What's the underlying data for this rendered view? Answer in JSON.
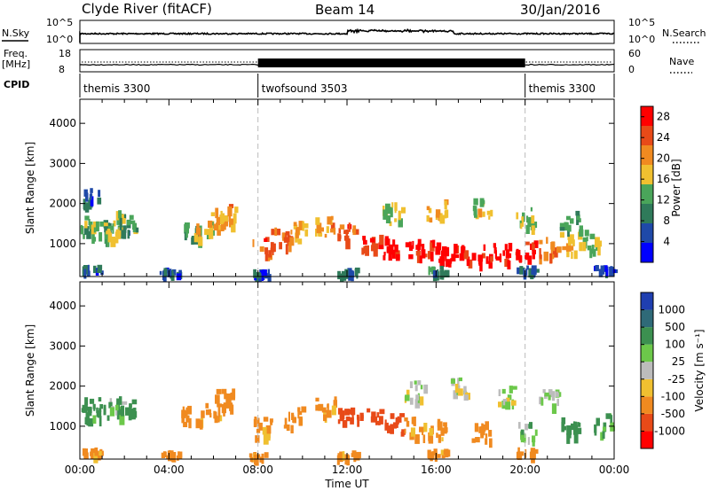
{
  "header": {
    "station": "Clyde River (fitACF)",
    "beam": "Beam 14",
    "date": "30/Jan/2016"
  },
  "strips": {
    "nsky_label": "N.Sky",
    "nsky_ticks": [
      "10^5",
      "10^0"
    ],
    "nsearch_label": "N.Search",
    "nsearch_ticks": [
      "10^5",
      "10^0"
    ],
    "freq_label_line1": "Freq.",
    "freq_label_line2": "[MHz]",
    "freq_ticks": [
      "18",
      "8"
    ],
    "nave_label": "Nave",
    "nave_ticks": [
      "60",
      "0"
    ],
    "cpid_label": "CPID"
  },
  "cpid_segments": [
    {
      "name": "themis 3300",
      "start": 0,
      "end": 8
    },
    {
      "name": "twofsound 3503",
      "start": 8,
      "end": 20
    },
    {
      "name": "themis 3300",
      "start": 20,
      "end": 24
    }
  ],
  "chart_data": [
    {
      "type": "heatmap",
      "panel": "power",
      "xlabel": "Time UT",
      "ylabel": "Slant Range [km]",
      "x_ticks": [
        "00:00",
        "04:00",
        "08:00",
        "12:00",
        "16:00",
        "20:00",
        "00:00"
      ],
      "xlim_hours": [
        0,
        24
      ],
      "ylim_km": [
        180,
        4600
      ],
      "y_ticks": [
        "1000",
        "2000",
        "3000",
        "4000"
      ],
      "colorbar": {
        "label": "Power [dB]",
        "ticks": [
          "4",
          "8",
          "12",
          "16",
          "20",
          "24",
          "28"
        ],
        "range": [
          0,
          30
        ],
        "colors": [
          "#0000ff",
          "#1f49a8",
          "#2f7a5a",
          "#4aa55a",
          "#f0c030",
          "#f08a20",
          "#e84a18",
          "#ff0000"
        ]
      },
      "series": [
        {
          "x": [
            0.0,
            0.2,
            0.5
          ],
          "y": [
            1350,
            1450,
            2150
          ],
          "values": [
            10,
            14,
            6
          ]
        },
        {
          "x": [
            1.0,
            1.5,
            2.0,
            2.2
          ],
          "y": [
            1350,
            1400,
            1600,
            1500
          ],
          "values": [
            12,
            16,
            14,
            10
          ]
        },
        {
          "x": [
            5.0,
            5.5,
            6.0,
            6.5
          ],
          "y": [
            1300,
            1400,
            1600,
            1750
          ],
          "values": [
            12,
            16,
            18,
            20
          ]
        },
        {
          "x": [
            8.2,
            9.0,
            9.8,
            11.0
          ],
          "y": [
            950,
            1200,
            1350,
            1450
          ],
          "values": [
            24,
            22,
            18,
            20
          ]
        },
        {
          "x": [
            12.0,
            13.0,
            14.0,
            15.0,
            16.0,
            17.0,
            18.0,
            19.0,
            20.0,
            21.0,
            22.0,
            23.0
          ],
          "y": [
            1300,
            1100,
            950,
            900,
            850,
            800,
            750,
            800,
            850,
            950,
            1050,
            1100
          ],
          "values": [
            24,
            28,
            28,
            28,
            28,
            28,
            28,
            28,
            26,
            22,
            18,
            14
          ]
        },
        {
          "x": [
            14.0,
            16.0,
            18.0,
            20.0,
            22.0
          ],
          "y": [
            1800,
            1900,
            1950,
            1700,
            1600
          ],
          "values": [
            16,
            18,
            16,
            14,
            12
          ]
        },
        {
          "x": [
            0.5,
            4.0,
            8.0,
            12.0,
            16.0,
            20.0,
            23.5
          ],
          "y": [
            400,
            330,
            300,
            330,
            380,
            400,
            420
          ],
          "values": [
            6,
            6,
            6,
            8,
            10,
            8,
            6
          ]
        }
      ]
    },
    {
      "type": "heatmap",
      "panel": "velocity",
      "xlabel": "Time UT",
      "ylabel": "Slant Range [km]",
      "x_ticks": [
        "00:00",
        "04:00",
        "08:00",
        "12:00",
        "16:00",
        "20:00",
        "00:00"
      ],
      "xlim_hours": [
        0,
        24
      ],
      "ylim_km": [
        180,
        4600
      ],
      "y_ticks": [
        "1000",
        "2000",
        "3000",
        "4000"
      ],
      "colorbar": {
        "label": "Velocity [m s⁻¹]",
        "ticks": [
          "1000",
          "500",
          "100",
          "25",
          "-25",
          "-100",
          "-500",
          "-1000"
        ],
        "colors": [
          "#1f3fb0",
          "#2f6a78",
          "#3c9050",
          "#6cc84a",
          "#bcbcbc",
          "#f0c030",
          "#f08a20",
          "#e84a18",
          "#ff0000"
        ]
      },
      "series": [
        {
          "x": [
            0.0,
            0.5,
            1.5,
            2.0
          ],
          "y": [
            1400,
            1500,
            1500,
            1500
          ],
          "values": [
            100,
            100,
            50,
            100
          ]
        },
        {
          "x": [
            5.0,
            6.0,
            6.5
          ],
          "y": [
            1300,
            1500,
            1700
          ],
          "values": [
            -100,
            -100,
            -100
          ]
        },
        {
          "x": [
            8.2,
            9.5,
            11.0
          ],
          "y": [
            1000,
            1250,
            1500
          ],
          "values": [
            -100,
            -100,
            -100
          ]
        },
        {
          "x": [
            12.0,
            13.0,
            14.0,
            15.0,
            16.0,
            18.0,
            20.0,
            22.0,
            23.5
          ],
          "y": [
            1300,
            1200,
            1100,
            1000,
            950,
            900,
            900,
            1000,
            1100
          ],
          "values": [
            -500,
            -500,
            -500,
            -100,
            -100,
            -100,
            50,
            100,
            100
          ]
        },
        {
          "x": [
            15.0,
            17.0,
            19.0,
            21.0
          ],
          "y": [
            1900,
            2000,
            1800,
            1700
          ],
          "values": [
            0,
            0,
            0,
            0
          ]
        },
        {
          "x": [
            0.5,
            4.0,
            8.0,
            12.0,
            16.0,
            20.0
          ],
          "y": [
            400,
            330,
            300,
            330,
            380,
            400
          ],
          "values": [
            -100,
            -100,
            -100,
            -100,
            -100,
            -100
          ]
        }
      ]
    }
  ]
}
